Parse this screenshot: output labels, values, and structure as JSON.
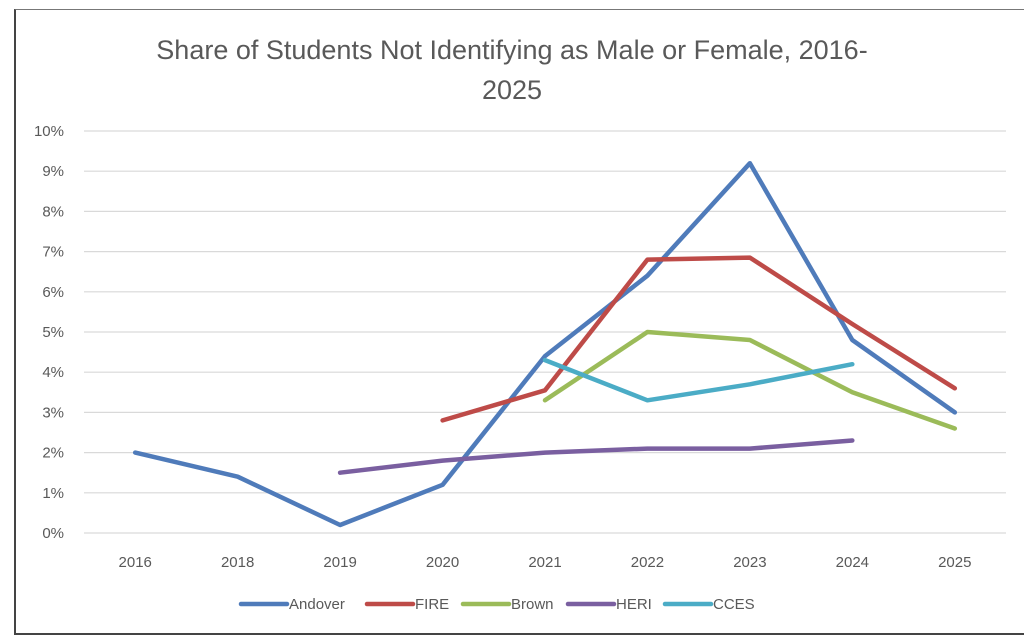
{
  "chart_data": {
    "type": "line",
    "title_line1": "Share of Students Not Identifying as Male or Female, 2016-",
    "title_line2": "2025",
    "xlabel": "",
    "ylabel": "",
    "categories": [
      "2016",
      "2018",
      "2019",
      "2020",
      "2021",
      "2022",
      "2023",
      "2024",
      "2025"
    ],
    "ylim": [
      0,
      10
    ],
    "y_ticks": [
      "0%",
      "1%",
      "2%",
      "3%",
      "4%",
      "5%",
      "6%",
      "7%",
      "8%",
      "9%",
      "10%"
    ],
    "grid": true,
    "legend_position": "bottom",
    "series": [
      {
        "name": "Andover",
        "color": "#4F7BBA",
        "values": [
          2.0,
          1.4,
          0.2,
          1.2,
          4.4,
          6.4,
          9.2,
          4.8,
          3.0
        ]
      },
      {
        "name": "FIRE",
        "color": "#BE4B48",
        "values": [
          null,
          null,
          null,
          2.8,
          3.55,
          6.8,
          6.85,
          5.2,
          3.6
        ]
      },
      {
        "name": "Brown",
        "color": "#9BBB59",
        "values": [
          null,
          null,
          null,
          null,
          3.3,
          5.0,
          4.8,
          3.5,
          2.6
        ]
      },
      {
        "name": "HERI",
        "color": "#7A5FA0",
        "values": [
          null,
          null,
          1.5,
          1.8,
          2.0,
          2.1,
          2.1,
          2.3,
          null
        ]
      },
      {
        "name": "CCES",
        "color": "#4BACC6",
        "values": [
          null,
          null,
          null,
          null,
          4.3,
          3.3,
          3.7,
          4.2,
          null
        ]
      }
    ]
  }
}
